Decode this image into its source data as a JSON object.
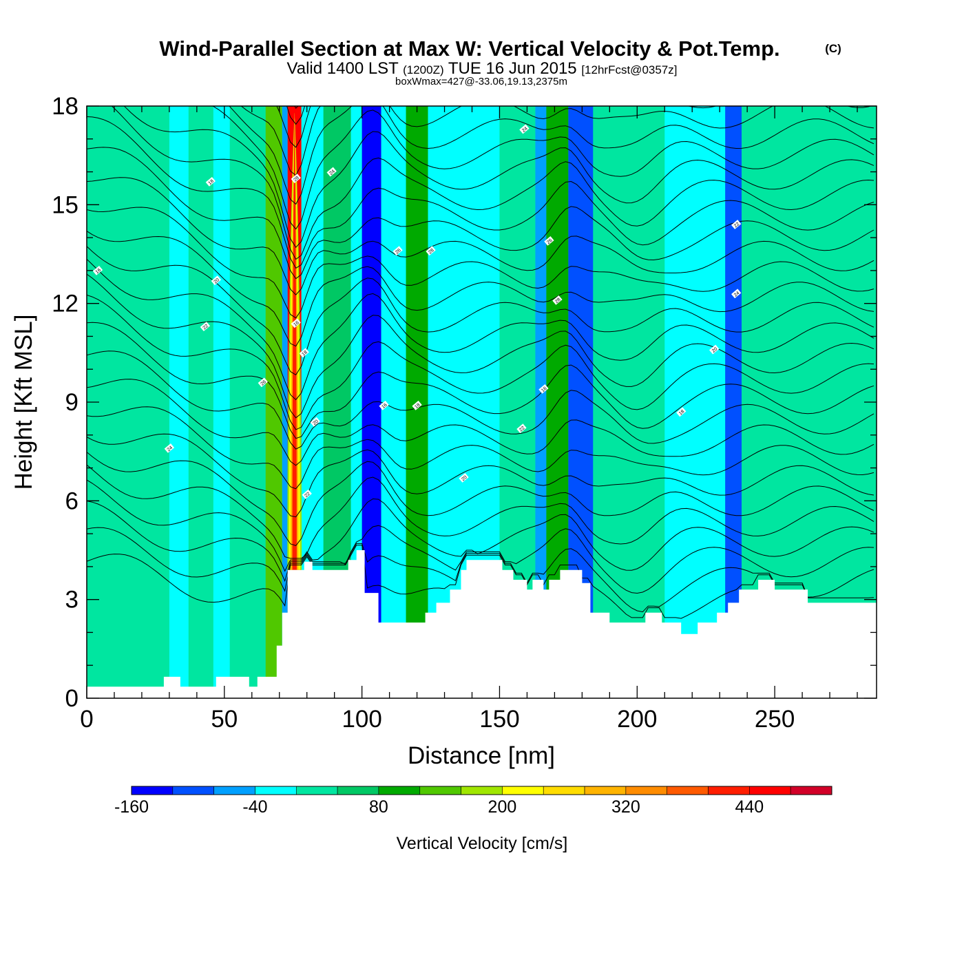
{
  "title": "Wind-Parallel Section at Max W: Vertical Velocity & Pot.Temp.",
  "copyright": "(C)",
  "subtitle": {
    "valid": "Valid 1400 LST",
    "utc": "(1200Z)",
    "date": "TUE 16 Jun 2015",
    "forecast": "[12hrFcst@0357z]"
  },
  "info_line": "boxWmax=427@-33.06,19.13,2375m",
  "chart_data": {
    "type": "heatmap",
    "xlabel": "Distance [nm]",
    "ylabel": "Height [Kft MSL]",
    "xlim": [
      0,
      287
    ],
    "ylim": [
      0,
      18
    ],
    "x_ticks": [
      "0",
      "50",
      "100",
      "150",
      "200",
      "250"
    ],
    "x_tick_values": [
      0,
      50,
      100,
      150,
      200,
      250
    ],
    "y_ticks": [
      "0",
      "3",
      "6",
      "9",
      "12",
      "15",
      "18"
    ],
    "y_tick_values": [
      0,
      3,
      6,
      9,
      12,
      15,
      18
    ],
    "colorbar": {
      "label": "Vertical Velocity [cm/s]",
      "levels": [
        -160,
        -120,
        -80,
        -40,
        0,
        40,
        80,
        120,
        160,
        200,
        240,
        280,
        320,
        360,
        400,
        440,
        480,
        520
      ],
      "tick_labels": [
        "-160",
        "-40",
        "80",
        "200",
        "320",
        "440"
      ],
      "tick_values": [
        -160,
        -40,
        80,
        200,
        320,
        440
      ],
      "colors": [
        "#0000ff",
        "#0050ff",
        "#00a0ff",
        "#00ffff",
        "#00e6a0",
        "#00c864",
        "#00aa00",
        "#50c800",
        "#a0e600",
        "#ffff00",
        "#ffdc00",
        "#ffb400",
        "#ff8c00",
        "#ff5a00",
        "#ff1e00",
        "#ff0000",
        "#d20028"
      ]
    },
    "terrain_kft": [
      [
        0,
        0.35
      ],
      [
        28,
        0.35
      ],
      [
        28,
        0.65
      ],
      [
        34,
        0.65
      ],
      [
        34,
        0.35
      ],
      [
        47,
        0.35
      ],
      [
        47,
        0.65
      ],
      [
        59,
        0.65
      ],
      [
        59,
        0.35
      ],
      [
        62,
        0.35
      ],
      [
        62,
        0.65
      ],
      [
        69,
        0.65
      ],
      [
        69,
        1.6
      ],
      [
        71,
        1.6
      ],
      [
        71,
        2.6
      ],
      [
        73,
        2.6
      ],
      [
        73,
        3.9
      ],
      [
        79,
        3.9
      ],
      [
        79,
        4.15
      ],
      [
        82,
        4.15
      ],
      [
        82,
        3.9
      ],
      [
        95,
        3.9
      ],
      [
        95,
        4.2
      ],
      [
        98,
        4.2
      ],
      [
        98,
        4.5
      ],
      [
        101,
        4.5
      ],
      [
        101,
        3.2
      ],
      [
        106,
        3.2
      ],
      [
        106,
        2.3
      ],
      [
        123,
        2.3
      ],
      [
        123,
        2.6
      ],
      [
        127,
        2.6
      ],
      [
        127,
        2.9
      ],
      [
        132,
        2.9
      ],
      [
        132,
        3.3
      ],
      [
        136,
        3.3
      ],
      [
        136,
        3.9
      ],
      [
        138,
        3.9
      ],
      [
        138,
        4.2
      ],
      [
        151,
        4.2
      ],
      [
        151,
        3.9
      ],
      [
        155,
        3.9
      ],
      [
        155,
        3.6
      ],
      [
        160,
        3.6
      ],
      [
        160,
        3.3
      ],
      [
        162,
        3.3
      ],
      [
        162,
        3.6
      ],
      [
        166,
        3.6
      ],
      [
        166,
        3.3
      ],
      [
        168,
        3.3
      ],
      [
        168,
        3.6
      ],
      [
        172,
        3.6
      ],
      [
        172,
        3.9
      ],
      [
        180,
        3.9
      ],
      [
        180,
        3.5
      ],
      [
        183,
        3.5
      ],
      [
        183,
        2.6
      ],
      [
        190,
        2.6
      ],
      [
        190,
        2.3
      ],
      [
        203,
        2.3
      ],
      [
        203,
        2.6
      ],
      [
        209,
        2.6
      ],
      [
        209,
        2.3
      ],
      [
        216,
        2.3
      ],
      [
        216,
        1.95
      ],
      [
        222,
        1.95
      ],
      [
        222,
        2.3
      ],
      [
        229,
        2.3
      ],
      [
        229,
        2.6
      ],
      [
        233,
        2.6
      ],
      [
        233,
        2.9
      ],
      [
        237,
        2.9
      ],
      [
        237,
        3.3
      ],
      [
        244,
        3.3
      ],
      [
        244,
        3.6
      ],
      [
        250,
        3.6
      ],
      [
        250,
        3.3
      ],
      [
        262,
        3.3
      ],
      [
        262,
        2.9
      ],
      [
        287,
        2.9
      ]
    ],
    "velocity_bands": [
      {
        "x": [
          0,
          30
        ],
        "value": 0,
        "color": "#00e6a0"
      },
      {
        "x": [
          30,
          37
        ],
        "value": -40,
        "color": "#00ffff"
      },
      {
        "x": [
          37,
          46
        ],
        "value": 0,
        "color": "#00e6a0"
      },
      {
        "x": [
          46,
          52
        ],
        "value": -40,
        "color": "#00ffff"
      },
      {
        "x": [
          52,
          65
        ],
        "value": 0,
        "color": "#00e6a0"
      },
      {
        "x": [
          65,
          71
        ],
        "value": 120,
        "color": "#50c800"
      },
      {
        "x": [
          71,
          73
        ],
        "value": -80,
        "color": "#00a0ff"
      },
      {
        "x": [
          73,
          78
        ],
        "value": 427,
        "color": "#ff0000"
      },
      {
        "x": [
          78,
          86
        ],
        "value": -40,
        "color": "#00ffff"
      },
      {
        "x": [
          86,
          96
        ],
        "value": 40,
        "color": "#00c864"
      },
      {
        "x": [
          96,
          100
        ],
        "value": -40,
        "color": "#00ffff"
      },
      {
        "x": [
          100,
          107
        ],
        "value": -160,
        "color": "#0000ff"
      },
      {
        "x": [
          107,
          116
        ],
        "value": -40,
        "color": "#00ffff"
      },
      {
        "x": [
          116,
          124
        ],
        "value": 80,
        "color": "#00aa00"
      },
      {
        "x": [
          124,
          150
        ],
        "value": -40,
        "color": "#00ffff"
      },
      {
        "x": [
          150,
          163
        ],
        "value": 0,
        "color": "#00e6a0"
      },
      {
        "x": [
          163,
          167
        ],
        "value": -80,
        "color": "#00a0ff"
      },
      {
        "x": [
          167,
          175
        ],
        "value": 80,
        "color": "#00aa00"
      },
      {
        "x": [
          175,
          184
        ],
        "value": -120,
        "color": "#0050ff"
      },
      {
        "x": [
          184,
          210
        ],
        "value": 0,
        "color": "#00e6a0"
      },
      {
        "x": [
          210,
          232
        ],
        "value": -40,
        "color": "#00ffff"
      },
      {
        "x": [
          232,
          238
        ],
        "value": -120,
        "color": "#0050ff"
      },
      {
        "x": [
          238,
          287
        ],
        "value": 0,
        "color": "#00e6a0"
      }
    ],
    "isentrope_labels": [
      "16",
      "18",
      "20",
      "22",
      "24",
      "26",
      "28"
    ]
  }
}
